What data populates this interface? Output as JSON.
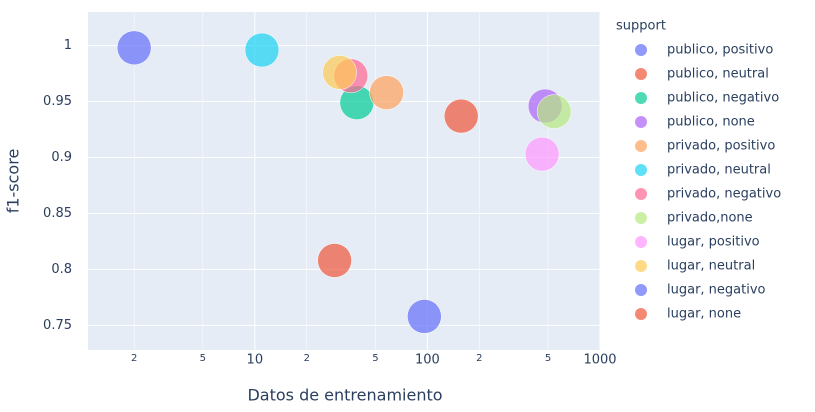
{
  "chart_data": {
    "type": "scatter",
    "x_label": "Datos de entrenamiento",
    "y_label": "f1-score",
    "legend_title": "support",
    "xscale": "log",
    "xlim": [
      1.08,
      1000
    ],
    "ylim": [
      0.728,
      1.03
    ],
    "xticks": [
      2,
      5,
      10,
      {
        "value": 20,
        "label": "2"
      },
      {
        "value": 50,
        "label": "5"
      },
      100,
      {
        "value": 200,
        "label": "2"
      },
      {
        "value": 500,
        "label": "5"
      },
      1000
    ],
    "yticks": [
      0.75,
      0.8,
      0.85,
      0.9,
      0.95,
      1
    ],
    "grid": true,
    "legend": "right",
    "series": [
      {
        "name": "publico, positivo",
        "color": "#636efa",
        "x": [
          2
        ],
        "values": [
          0.998
        ]
      },
      {
        "name": "publico, neutral",
        "color": "#ef553b",
        "x": [
          157
        ],
        "values": [
          0.937
        ]
      },
      {
        "name": "publico, negativo",
        "color": "#00cc96",
        "x": [
          39
        ],
        "values": [
          0.949
        ]
      },
      {
        "name": "publico, none",
        "color": "#ab63fa",
        "x": [
          481
        ],
        "values": [
          0.946
        ]
      },
      {
        "name": "privado, positivo",
        "color": "#ffa15a",
        "x": [
          58
        ],
        "values": [
          0.958
        ]
      },
      {
        "name": "privado, neutral",
        "color": "#19d3f3",
        "x": [
          11
        ],
        "values": [
          0.996
        ]
      },
      {
        "name": "privado, negativo",
        "color": "#ff6692",
        "x": [
          36
        ],
        "values": [
          0.973
        ]
      },
      {
        "name": "privado,none",
        "color": "#b6e880",
        "x": [
          542
        ],
        "values": [
          0.941
        ]
      },
      {
        "name": "lugar, positivo",
        "color": "#ff97ff",
        "x": [
          462
        ],
        "values": [
          0.903
        ]
      },
      {
        "name": "lugar, neutral",
        "color": "#fecb52",
        "x": [
          31
        ],
        "values": [
          0.976
        ]
      },
      {
        "name": "lugar, negativo",
        "color": "#636efa",
        "x": [
          96
        ],
        "values": [
          0.758
        ]
      },
      {
        "name": "lugar, none",
        "color": "#ef553b",
        "x": [
          29
        ],
        "values": [
          0.808
        ]
      }
    ]
  }
}
